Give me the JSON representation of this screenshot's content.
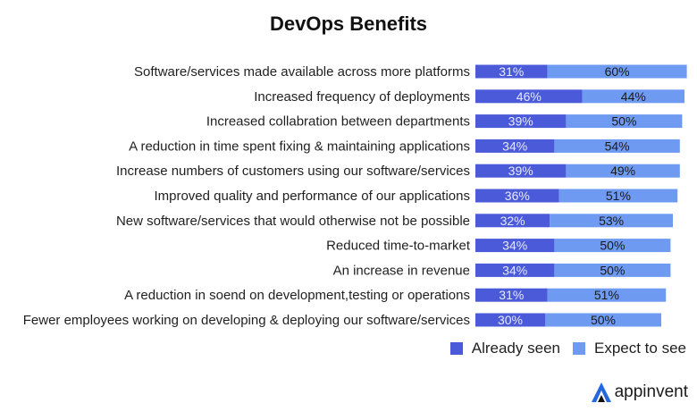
{
  "chart_data": {
    "type": "bar",
    "orientation": "horizontal",
    "stacked": true,
    "title": "DevOps Benefits",
    "xlabel": "",
    "ylabel": "",
    "xlim": [
      0,
      100
    ],
    "grid": false,
    "legend_position": "bottom-right",
    "categories": [
      "Software/services made available across more platforms",
      "Increased frequency of deployments",
      "Increased collabration between departments",
      "A reduction in time spent fixing & maintaining applications",
      "Increase numbers of customers using our software/services",
      "Improved quality and performance of our applications",
      "New software/services that would otherwise not be possible",
      "Reduced time-to-market",
      "An increase in revenue",
      "A reduction in soend on development,testing or operations",
      "Fewer employees working on developing & deploying our software/services"
    ],
    "series": [
      {
        "name": "Already seen",
        "color": "#4a5ad8",
        "values": [
          31,
          46,
          39,
          34,
          39,
          36,
          32,
          34,
          34,
          31,
          30
        ]
      },
      {
        "name": "Expect to see",
        "color": "#6e9af2",
        "values": [
          60,
          44,
          50,
          54,
          49,
          51,
          53,
          50,
          50,
          51,
          50
        ]
      }
    ]
  },
  "branding": {
    "logo_text": "appinvent",
    "logo_color": "#2468e0"
  },
  "colors": {
    "seen_label": "#e6e9ff",
    "expect_label": "#1a1a1a"
  }
}
